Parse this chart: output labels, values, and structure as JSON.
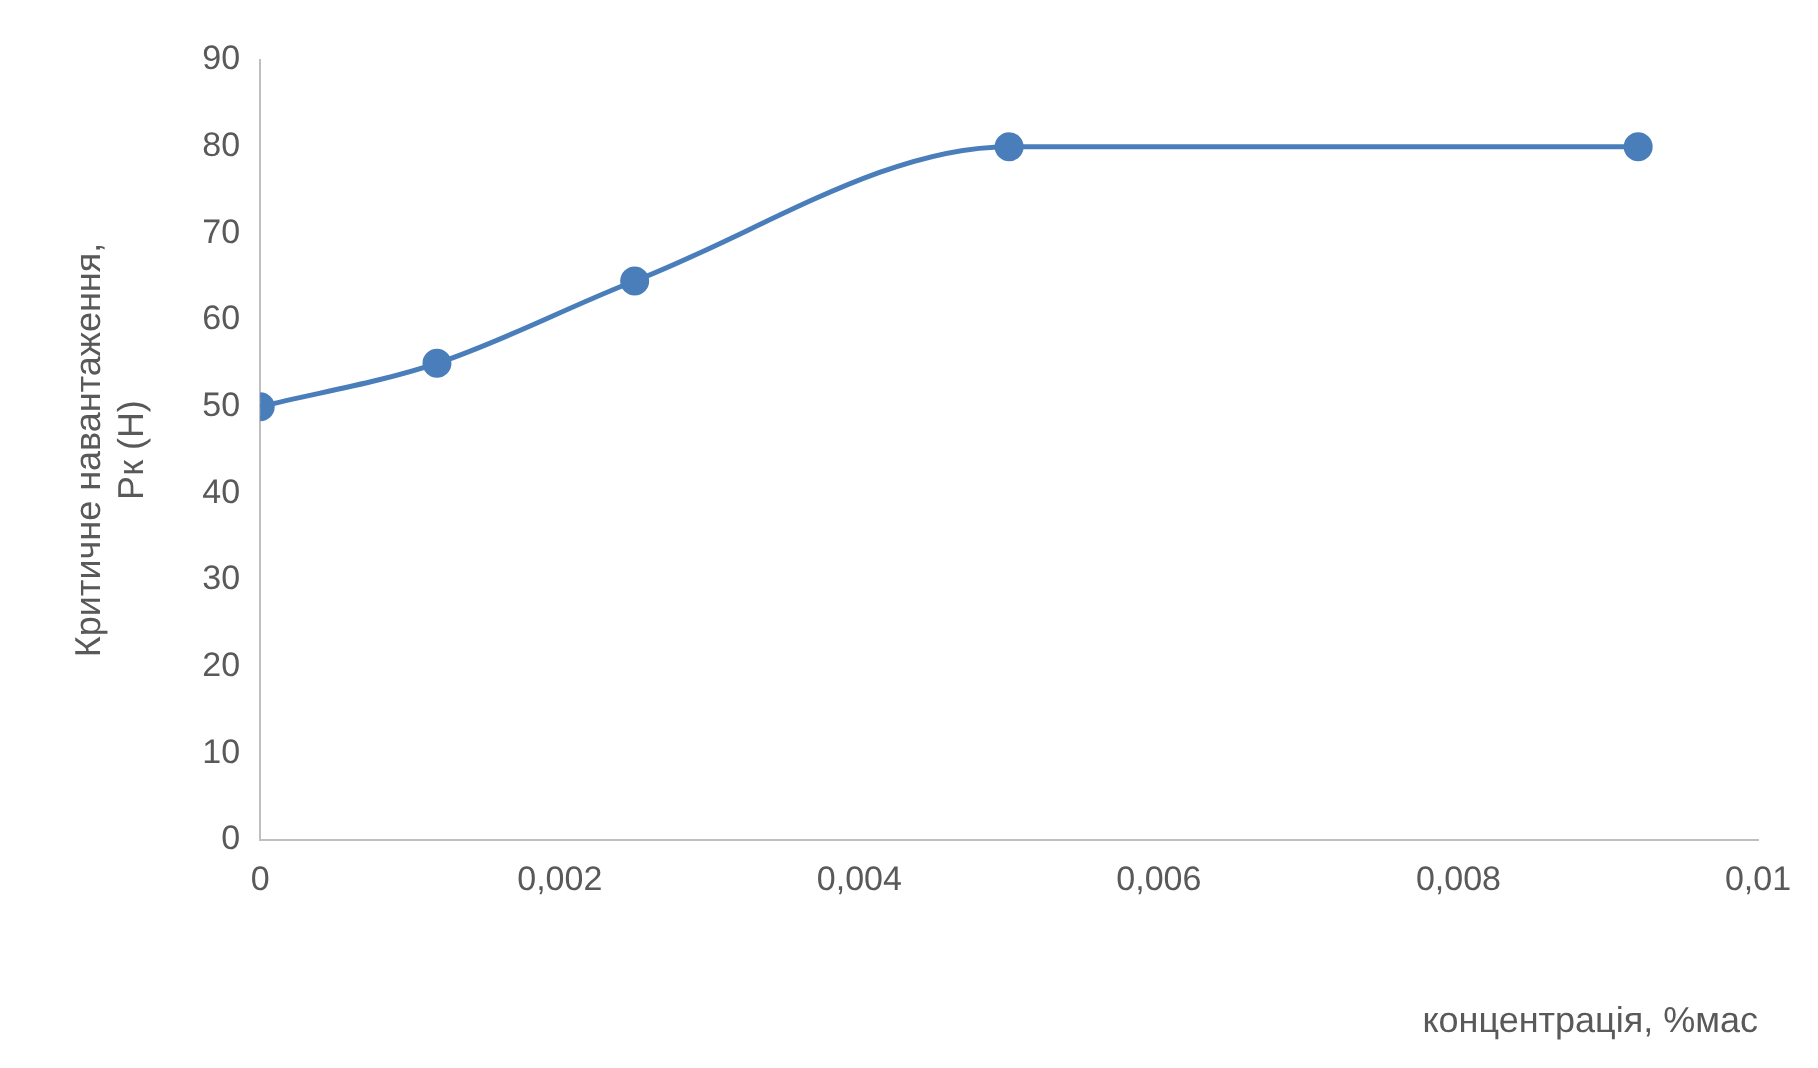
{
  "chart_data": {
    "type": "line",
    "xlabel": "концентрація, %мас",
    "ylabel": "Критичне навантаження, Рк (Н)",
    "x": [
      0,
      0.00118,
      0.0025,
      0.005,
      0.0092
    ],
    "series": [
      {
        "color": "#4a7ebb",
        "values": [
          50,
          55,
          64.5,
          80,
          80
        ]
      }
    ],
    "xlim": [
      0,
      0.01
    ],
    "xticks": [
      0,
      {
        "value": 0.002,
        "label": "0,002"
      },
      {
        "value": 0.004,
        "label": "0,004"
      },
      {
        "value": 0.006,
        "label": "0,006"
      },
      {
        "value": 0.008,
        "label": "0,008"
      },
      {
        "value": 0.01,
        "label": "0,01"
      }
    ],
    "ylim": [
      0,
      90
    ],
    "yticks": [
      0,
      10,
      20,
      30,
      40,
      50,
      60,
      70,
      80,
      90
    ],
    "grid": false,
    "legend": false,
    "marker": "circle",
    "line_style": "solid"
  }
}
